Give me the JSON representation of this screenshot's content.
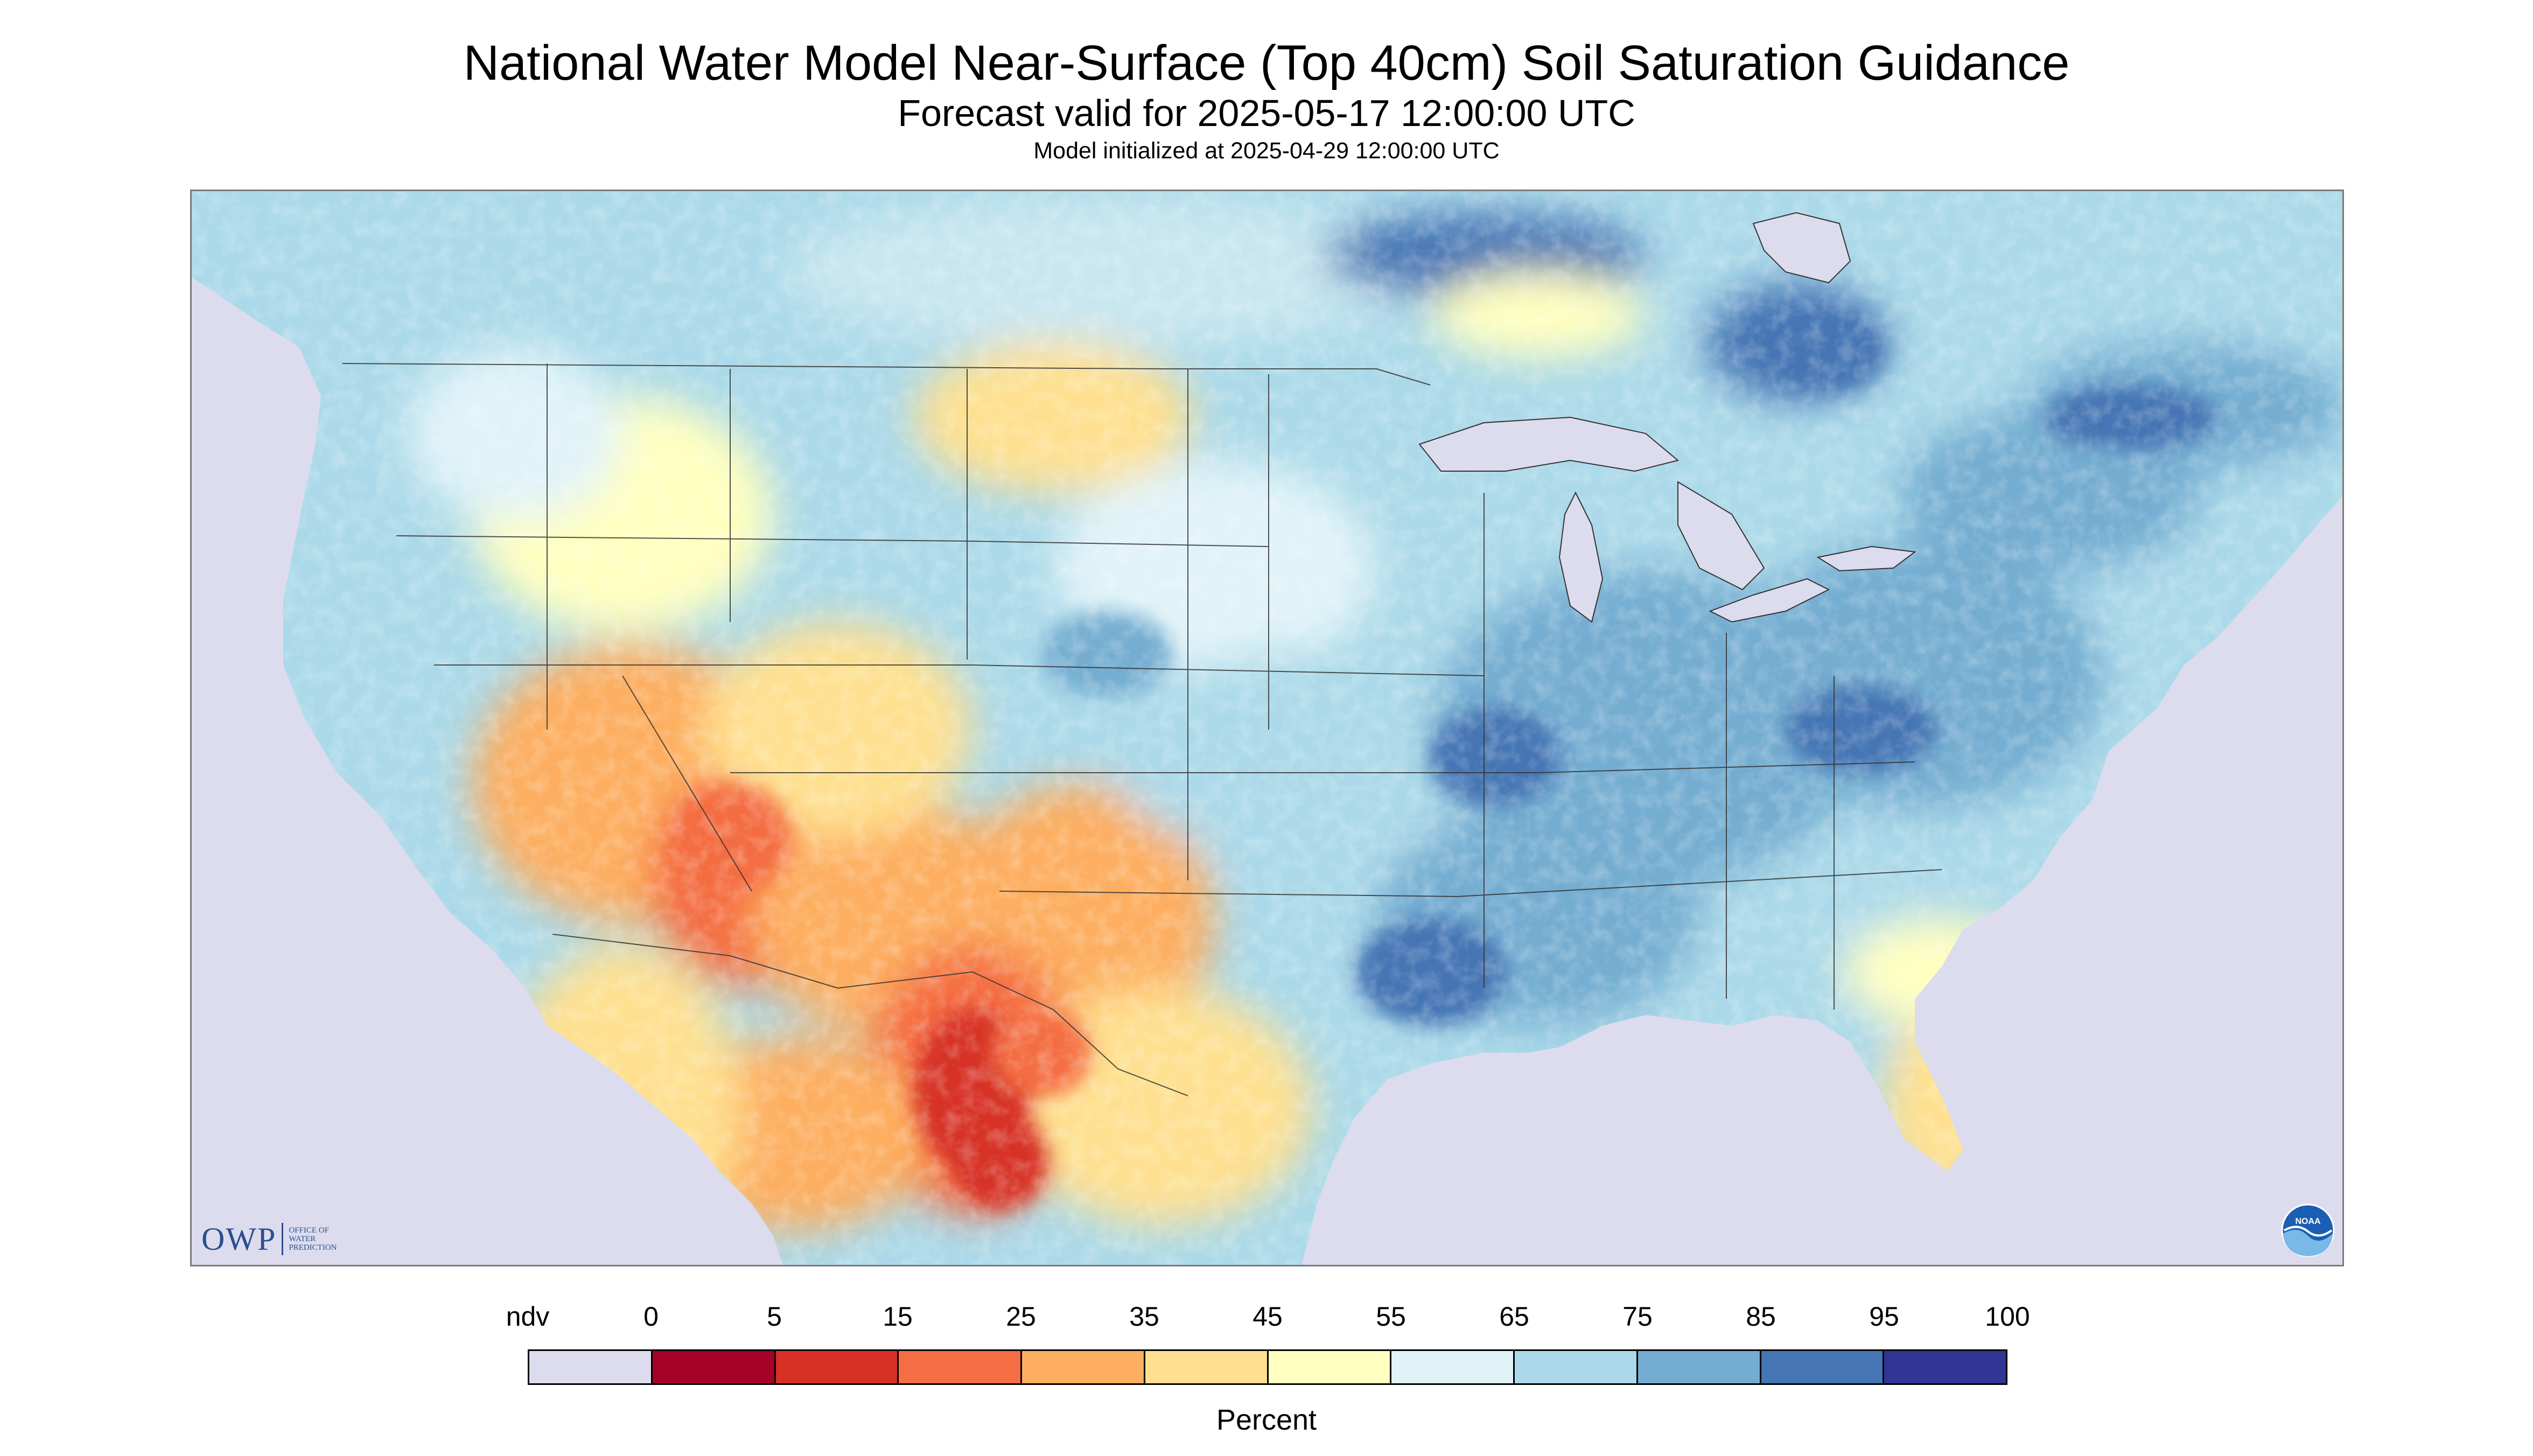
{
  "title": "National Water Model Near-Surface (Top 40cm) Soil Saturation Guidance",
  "subtitle": "Forecast valid for 2025-05-17 12:00:00 UTC",
  "init_line": "Model initialized at 2025-04-29 12:00:00 UTC",
  "logos": {
    "owp_mark": "OWP",
    "owp_text": "OFFICE OF WATER PREDICTION",
    "noaa_text": "NOAA"
  },
  "legend": {
    "ndv_label": "ndv",
    "ticks": [
      "0",
      "5",
      "15",
      "25",
      "35",
      "45",
      "55",
      "65",
      "75",
      "85",
      "95",
      "100"
    ],
    "colors": [
      "#dcdcee",
      "#a50026",
      "#d73027",
      "#f46d43",
      "#fdae61",
      "#fee090",
      "#ffffbf",
      "#e0f3f8",
      "#abd9e9",
      "#74add1",
      "#4575b4",
      "#313695"
    ],
    "unit": "Percent"
  },
  "map": {
    "no_data_color": "#dcdcee",
    "water_color": "#dcdcee",
    "border_color": "#333333"
  }
}
